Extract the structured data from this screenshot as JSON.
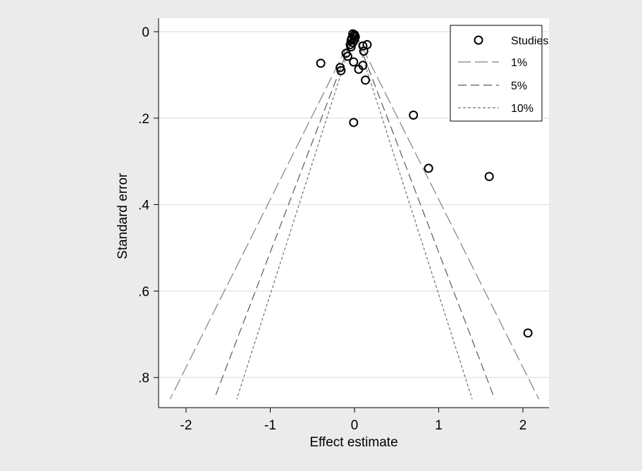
{
  "chart_data": {
    "type": "scatter",
    "title": "",
    "xlabel": "Effect estimate",
    "ylabel": "Standard error",
    "xlim": [
      -2.3,
      2.3
    ],
    "ylim": [
      0.87,
      -0.02
    ],
    "y_inverted": true,
    "x_ticks": [
      {
        "value": -2,
        "label": "-2"
      },
      {
        "value": -1,
        "label": "-1"
      },
      {
        "value": 0,
        "label": "0"
      },
      {
        "value": 1,
        "label": "1"
      },
      {
        "value": 2,
        "label": "2"
      }
    ],
    "y_ticks": [
      {
        "value": 0,
        "label": "0"
      },
      {
        "value": 0.2,
        "label": ".2"
      },
      {
        "value": 0.4,
        "label": ".4"
      },
      {
        "value": 0.6,
        "label": ".6"
      },
      {
        "value": 0.8,
        "label": ".8"
      }
    ],
    "grid": "horizontal",
    "legend_position": "top-right",
    "legend": [
      {
        "label": "Studies",
        "marker": "circle"
      },
      {
        "label": "1%",
        "style": "longdash"
      },
      {
        "label": "5%",
        "style": "dash"
      },
      {
        "label": "10%",
        "style": "shortdash"
      }
    ],
    "series": [
      {
        "name": "Studies",
        "points": [
          {
            "x": -0.02,
            "y": 0.005
          },
          {
            "x": 0.0,
            "y": 0.007
          },
          {
            "x": -0.01,
            "y": 0.01
          },
          {
            "x": 0.01,
            "y": 0.012
          },
          {
            "x": -0.03,
            "y": 0.015
          },
          {
            "x": 0.0,
            "y": 0.018
          },
          {
            "x": -0.04,
            "y": 0.02
          },
          {
            "x": -0.02,
            "y": 0.025
          },
          {
            "x": -0.05,
            "y": 0.03
          },
          {
            "x": -0.04,
            "y": 0.035
          },
          {
            "x": 0.1,
            "y": 0.033
          },
          {
            "x": 0.15,
            "y": 0.03
          },
          {
            "x": 0.11,
            "y": 0.045
          },
          {
            "x": -0.1,
            "y": 0.05
          },
          {
            "x": -0.08,
            "y": 0.057
          },
          {
            "x": -0.01,
            "y": 0.07
          },
          {
            "x": 0.1,
            "y": 0.078
          },
          {
            "x": -0.4,
            "y": 0.073
          },
          {
            "x": -0.17,
            "y": 0.083
          },
          {
            "x": -0.16,
            "y": 0.09
          },
          {
            "x": 0.05,
            "y": 0.087
          },
          {
            "x": 0.13,
            "y": 0.112
          },
          {
            "x": 0.7,
            "y": 0.193
          },
          {
            "x": -0.01,
            "y": 0.21
          },
          {
            "x": 0.88,
            "y": 0.316
          },
          {
            "x": 1.6,
            "y": 0.335
          },
          {
            "x": 2.06,
            "y": 0.697
          }
        ]
      }
    ],
    "reference_lines": [
      {
        "name": "1%",
        "center": 0.0,
        "z": 2.576,
        "se_max": 0.85,
        "style": "longdash"
      },
      {
        "name": "5%",
        "center": 0.0,
        "z": 1.96,
        "se_max": 0.85,
        "style": "dash"
      },
      {
        "name": "10%",
        "center": 0.0,
        "z": 1.645,
        "se_max": 0.85,
        "style": "shortdash"
      }
    ],
    "colors": {
      "outer_background": "#ebebeb",
      "plot_background": "#ffffff",
      "grid": "#e5e5e5",
      "axis": "#000000",
      "marker_stroke": "#000000",
      "line_1pct": "#808080",
      "line_5pct": "#5a5a5a",
      "line_10pct": "#707070"
    }
  }
}
